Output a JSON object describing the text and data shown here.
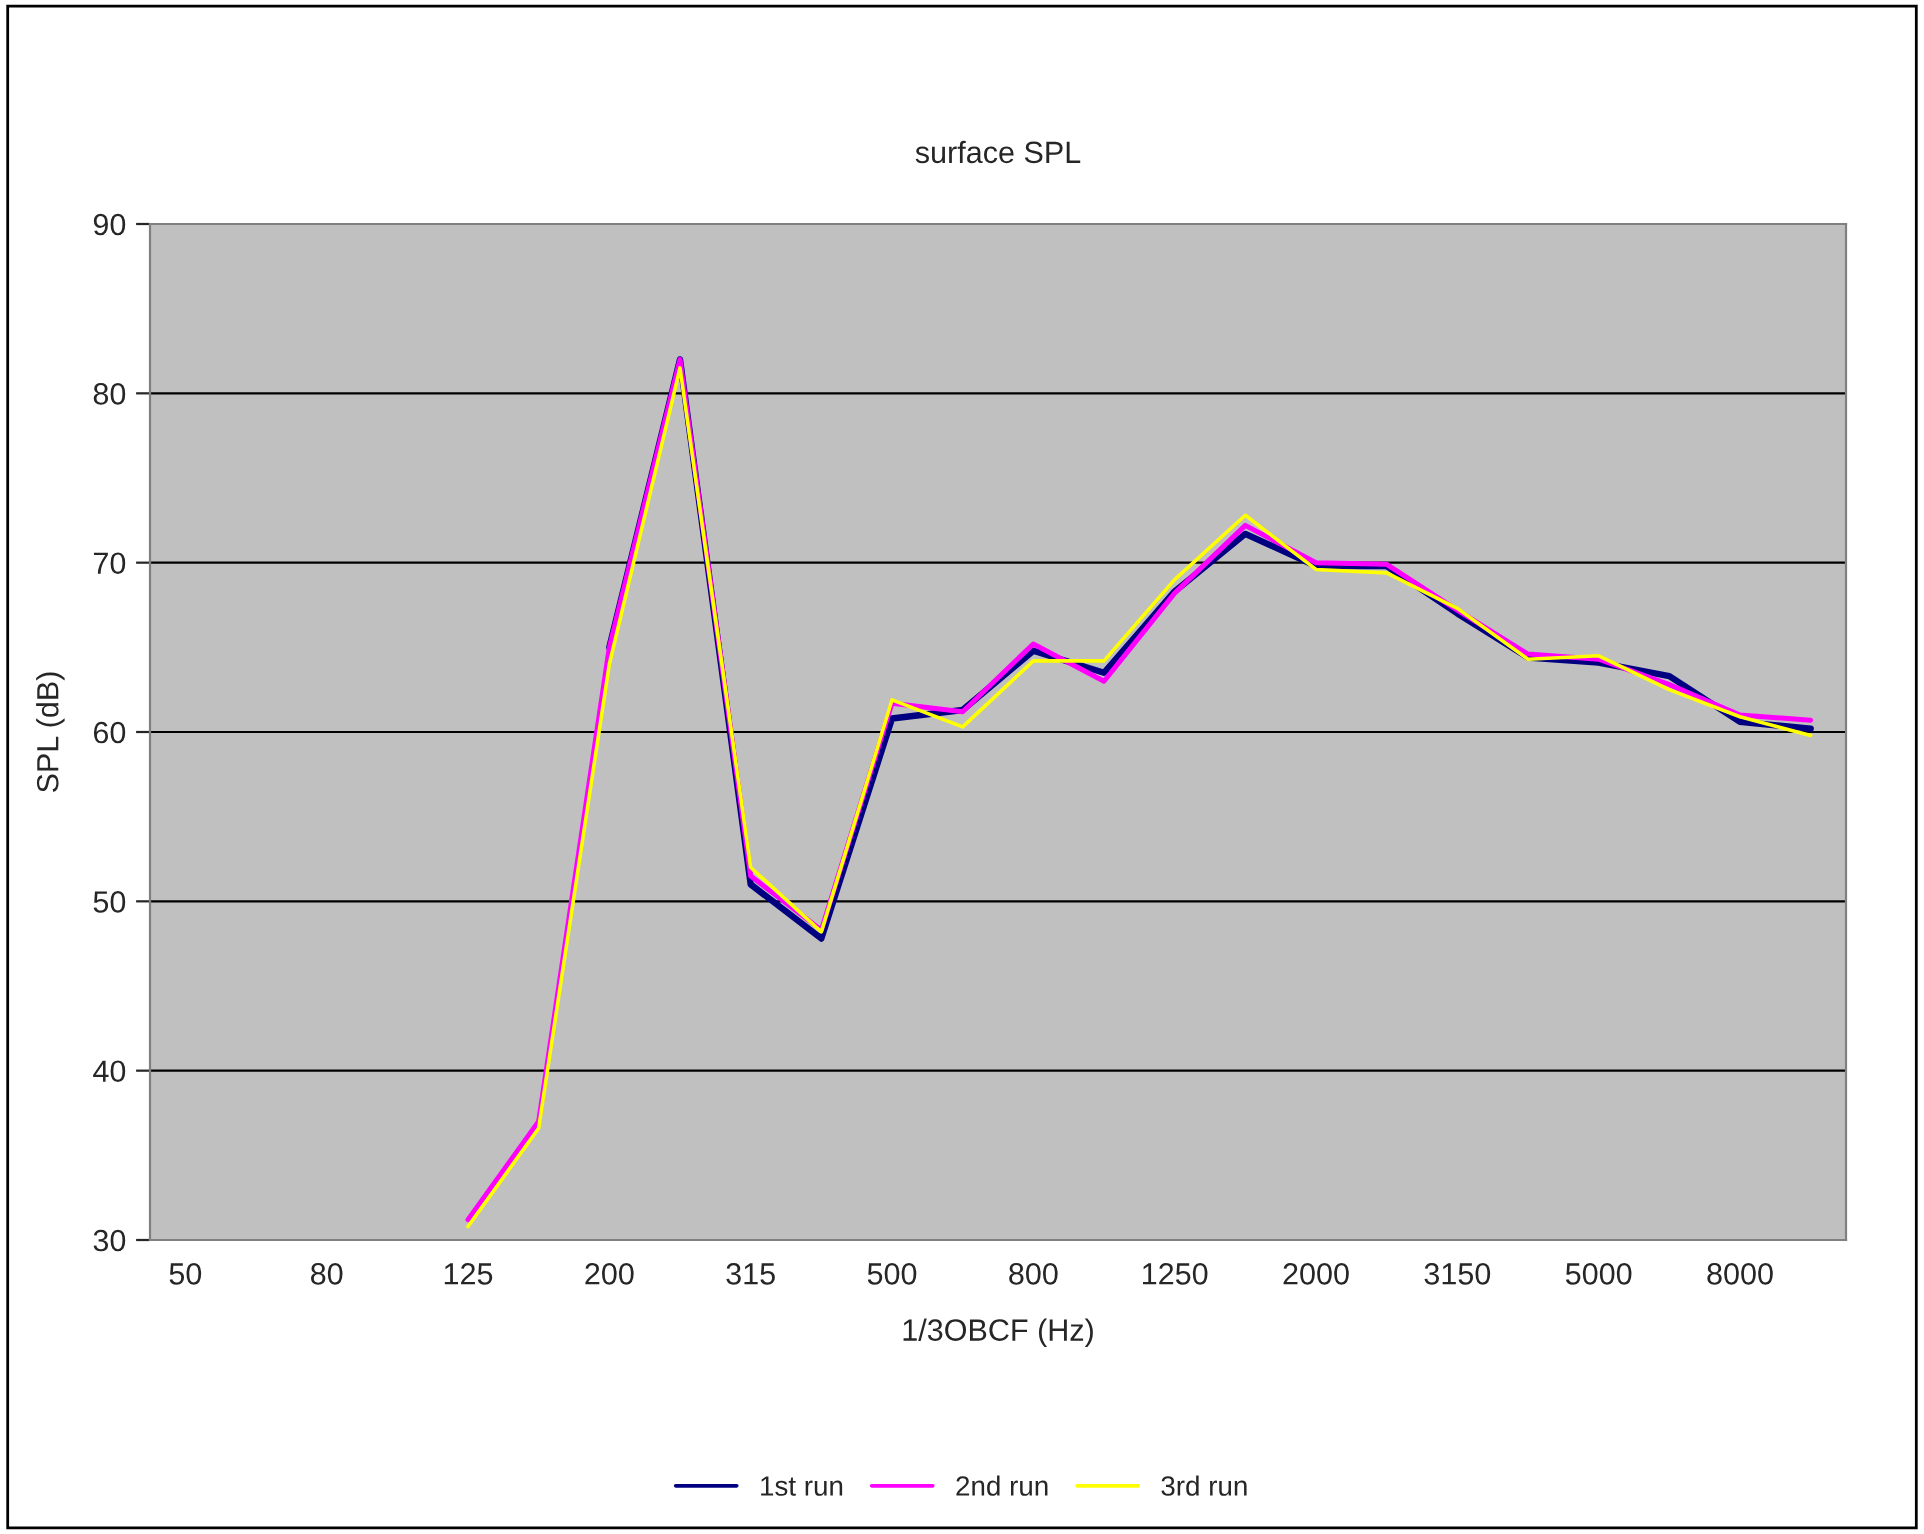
{
  "chart_data": {
    "type": "line",
    "title": "surface SPL",
    "xlabel": "1/3OBCF (Hz)",
    "ylabel": "SPL (dB)",
    "categories": [
      "50",
      null,
      "80",
      null,
      "125",
      null,
      "200",
      null,
      "315",
      null,
      "500",
      null,
      "800",
      null,
      "1250",
      null,
      "2000",
      null,
      "3150",
      null,
      "5000",
      null,
      "8000",
      null
    ],
    "series": [
      {
        "name": "1st run",
        "color": "#000080",
        "values": [
          null,
          null,
          null,
          null,
          null,
          null,
          65.0,
          82.0,
          51.0,
          47.8,
          60.8,
          61.3,
          64.8,
          63.5,
          68.3,
          71.7,
          69.8,
          69.8,
          67.0,
          64.4,
          64.1,
          63.3,
          60.6,
          60.2
        ]
      },
      {
        "name": "2nd run",
        "color": "#ff00ff",
        "values": [
          null,
          null,
          null,
          null,
          31.2,
          37.0,
          65.0,
          82.0,
          51.5,
          48.3,
          61.7,
          61.2,
          65.2,
          63.0,
          68.2,
          72.2,
          70.0,
          69.9,
          67.2,
          64.6,
          64.3,
          62.8,
          61.0,
          60.7
        ]
      },
      {
        "name": "3rd run",
        "color": "#ffff00",
        "values": [
          null,
          null,
          null,
          null,
          30.8,
          36.6,
          64.0,
          81.5,
          52.0,
          48.2,
          61.9,
          60.3,
          64.2,
          64.2,
          69.0,
          72.8,
          69.6,
          69.4,
          67.3,
          64.3,
          64.5,
          62.5,
          60.9,
          59.8
        ]
      }
    ],
    "ylim": [
      30,
      90
    ],
    "yticks": [
      30,
      40,
      50,
      60,
      70,
      80,
      90
    ],
    "grid": "y",
    "legend": "bottom",
    "marker": "none",
    "line_style": "solid"
  }
}
